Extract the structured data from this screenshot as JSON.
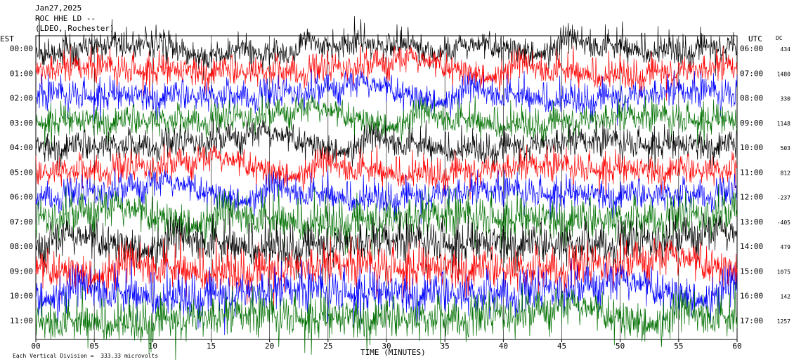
{
  "header": {
    "date": "Jan27,2025",
    "station": "ROC HHE LD --",
    "network": "(LDEO, Rochester)"
  },
  "left_axis_label": "EST",
  "right_axis_label": "UTC",
  "dc_label": "DC",
  "footer_note": "Each Vertical Division =  333.33 microvolts",
  "chart_data": {
    "type": "line",
    "title": "ROC HHE LD --",
    "xlabel": "TIME (MINUTES)",
    "ylabel": "",
    "xlim": [
      0,
      60
    ],
    "xticks": [
      "00",
      "05",
      "10",
      "15",
      "20",
      "25",
      "30",
      "35",
      "40",
      "45",
      "50",
      "55",
      "60"
    ],
    "rows": [
      {
        "est": "00:00",
        "utc": "06:00",
        "dc": "434",
        "color": "#000000"
      },
      {
        "est": "01:00",
        "utc": "07:00",
        "dc": "1480",
        "color": "#ff0000"
      },
      {
        "est": "02:00",
        "utc": "08:00",
        "dc": "330",
        "color": "#0000ff"
      },
      {
        "est": "03:00",
        "utc": "09:00",
        "dc": "1148",
        "color": "#007000"
      },
      {
        "est": "04:00",
        "utc": "10:00",
        "dc": "503",
        "color": "#000000"
      },
      {
        "est": "05:00",
        "utc": "11:00",
        "dc": "812",
        "color": "#ff0000"
      },
      {
        "est": "06:00",
        "utc": "12:00",
        "dc": "-237",
        "color": "#0000ff"
      },
      {
        "est": "07:00",
        "utc": "13:00",
        "dc": "-405",
        "color": "#007000"
      },
      {
        "est": "08:00",
        "utc": "14:00",
        "dc": "479",
        "color": "#000000"
      },
      {
        "est": "09:00",
        "utc": "15:00",
        "dc": "1075",
        "color": "#ff0000"
      },
      {
        "est": "10:00",
        "utc": "16:00",
        "dc": "142",
        "color": "#0000ff"
      },
      {
        "est": "11:00",
        "utc": "17:00",
        "dc": "1257",
        "color": "#007000"
      }
    ]
  }
}
